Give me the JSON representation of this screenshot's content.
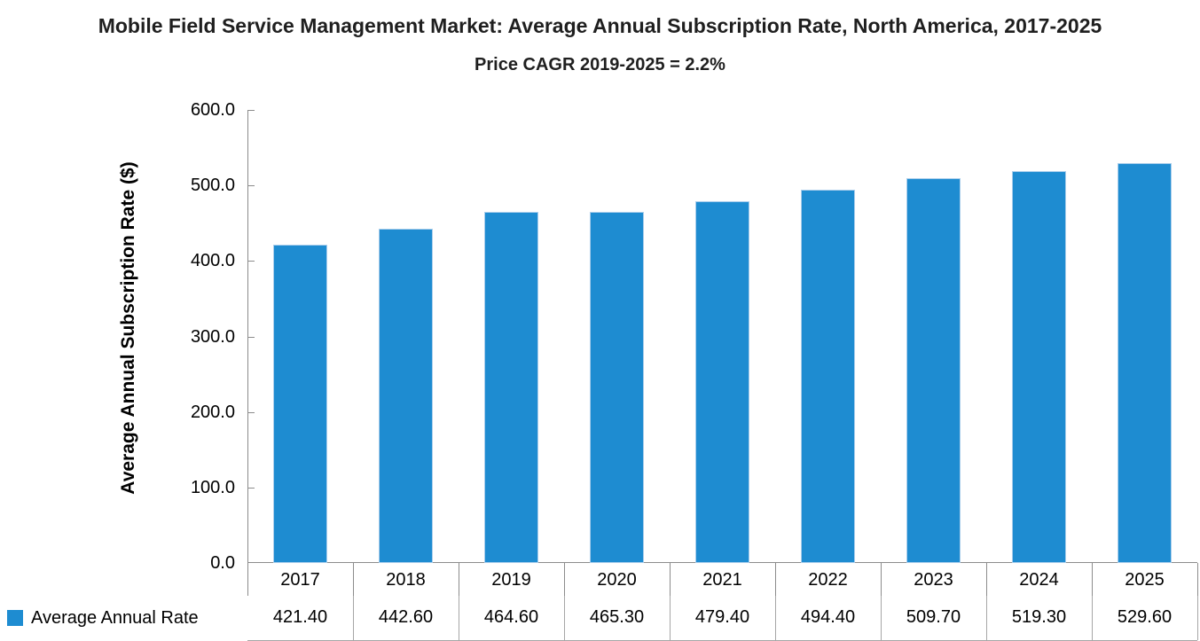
{
  "chart_data": {
    "type": "bar",
    "title": "Mobile Field Service Management Market: Average Annual Subscription Rate, North America, 2017-2025",
    "subtitle": "Price CAGR 2019-2025 = 2.2%",
    "ylabel": "Average Annual Subscription Rate ($)",
    "xlabel": "",
    "categories": [
      "2017",
      "2018",
      "2019",
      "2020",
      "2021",
      "2022",
      "2023",
      "2024",
      "2025"
    ],
    "series": [
      {
        "name": "Average Annual Rate",
        "values": [
          421.4,
          442.6,
          464.6,
          465.3,
          479.4,
          494.4,
          509.7,
          519.3,
          529.6
        ]
      }
    ],
    "ylim": [
      0,
      600
    ],
    "ytick_step": 100,
    "ytick_decimals": 1,
    "value_decimals": 2,
    "grid": false,
    "legend_position": "bottom-left",
    "data_table_shown": true,
    "colors": {
      "bar_fill": "#1E8CD1",
      "bar_border": "#A9CDEB",
      "axis_line": "#8C8C8C",
      "table_line": "#A6A6A6",
      "text": "#000000",
      "title_text": "#1F1F1F"
    }
  }
}
